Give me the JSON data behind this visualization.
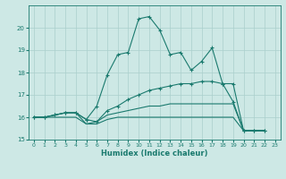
{
  "xlabel": "Humidex (Indice chaleur)",
  "xlim": [
    -0.5,
    23.5
  ],
  "ylim": [
    15,
    21
  ],
  "yticks": [
    15,
    16,
    17,
    18,
    19,
    20
  ],
  "xticks": [
    0,
    1,
    2,
    3,
    4,
    5,
    6,
    7,
    8,
    9,
    10,
    11,
    12,
    13,
    14,
    15,
    16,
    17,
    18,
    19,
    20,
    21,
    22,
    23
  ],
  "bg_color": "#cde8e5",
  "grid_color": "#aacfcc",
  "line_color": "#1a7a6e",
  "series": [
    {
      "x": [
        0,
        1,
        2,
        3,
        4,
        5,
        6,
        7,
        8,
        9,
        10,
        11,
        12,
        13,
        14,
        15,
        16,
        17,
        18,
        19,
        20,
        21,
        22
      ],
      "y": [
        16.0,
        16.0,
        16.1,
        16.2,
        16.2,
        15.9,
        16.5,
        17.9,
        18.8,
        18.9,
        20.4,
        20.5,
        19.9,
        18.8,
        18.9,
        18.1,
        18.5,
        19.1,
        17.5,
        16.7,
        15.4,
        15.4,
        15.4
      ],
      "marker": true
    },
    {
      "x": [
        0,
        1,
        2,
        3,
        4,
        5,
        6,
        7,
        8,
        9,
        10,
        11,
        12,
        13,
        14,
        15,
        16,
        17,
        18,
        19,
        20,
        21,
        22
      ],
      "y": [
        16.0,
        16.0,
        16.1,
        16.2,
        16.2,
        15.9,
        15.8,
        16.3,
        16.5,
        16.8,
        17.0,
        17.2,
        17.3,
        17.4,
        17.5,
        17.5,
        17.6,
        17.6,
        17.5,
        17.5,
        15.4,
        15.4,
        15.4
      ],
      "marker": true
    },
    {
      "x": [
        0,
        1,
        2,
        3,
        4,
        5,
        6,
        7,
        8,
        9,
        10,
        11,
        12,
        13,
        14,
        15,
        16,
        17,
        18,
        19,
        20,
        21,
        22
      ],
      "y": [
        16.0,
        16.0,
        16.1,
        16.2,
        16.2,
        15.7,
        15.8,
        16.1,
        16.2,
        16.3,
        16.4,
        16.5,
        16.5,
        16.6,
        16.6,
        16.6,
        16.6,
        16.6,
        16.6,
        16.6,
        15.4,
        15.4,
        15.4
      ],
      "marker": false
    },
    {
      "x": [
        0,
        1,
        2,
        3,
        4,
        5,
        6,
        7,
        8,
        9,
        10,
        11,
        12,
        13,
        14,
        15,
        16,
        17,
        18,
        19,
        20,
        21,
        22
      ],
      "y": [
        16.0,
        16.0,
        16.0,
        16.0,
        16.0,
        15.7,
        15.7,
        15.9,
        16.0,
        16.0,
        16.0,
        16.0,
        16.0,
        16.0,
        16.0,
        16.0,
        16.0,
        16.0,
        16.0,
        16.0,
        15.4,
        15.4,
        15.4
      ],
      "marker": false
    }
  ]
}
